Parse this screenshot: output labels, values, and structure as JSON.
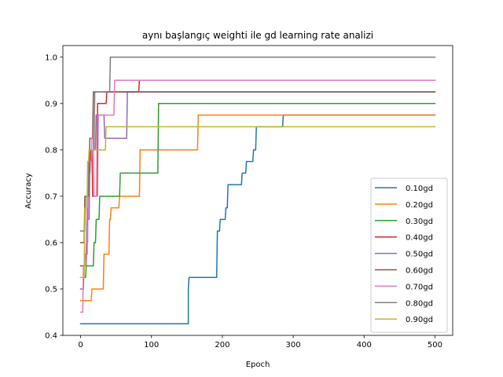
{
  "chart_data": {
    "type": "line",
    "title": "aynı başlangıç weighti ile gd learning rate analizi",
    "xlabel": "Epoch",
    "ylabel": "Accuracy",
    "xlim": [
      -25,
      525
    ],
    "ylim": [
      0.4,
      1.025
    ],
    "xticks": [
      0,
      100,
      200,
      300,
      400,
      500
    ],
    "yticks": [
      0.4,
      0.5,
      0.6,
      0.7,
      0.8,
      0.9,
      1.0
    ],
    "xtick_labels": [
      "0",
      "100",
      "200",
      "300",
      "400",
      "500"
    ],
    "ytick_labels": [
      "0.4",
      "0.5",
      "0.6",
      "0.7",
      "0.8",
      "0.9",
      "1.0"
    ],
    "grid": false,
    "legend_position": "lower right",
    "series": [
      {
        "name": "0.10gd",
        "color": "#1f77b4",
        "points": [
          [
            0,
            0.425
          ],
          [
            152,
            0.425
          ],
          [
            152,
            0.5
          ],
          [
            153,
            0.525
          ],
          [
            192,
            0.525
          ],
          [
            193,
            0.625
          ],
          [
            196,
            0.625
          ],
          [
            197,
            0.65
          ],
          [
            204,
            0.65
          ],
          [
            205,
            0.675
          ],
          [
            207,
            0.675
          ],
          [
            208,
            0.725
          ],
          [
            227,
            0.725
          ],
          [
            228,
            0.75
          ],
          [
            233,
            0.75
          ],
          [
            234,
            0.775
          ],
          [
            243,
            0.775
          ],
          [
            244,
            0.8
          ],
          [
            247,
            0.8
          ],
          [
            248,
            0.85
          ],
          [
            285,
            0.85
          ],
          [
            286,
            0.875
          ],
          [
            500,
            0.875
          ]
        ]
      },
      {
        "name": "0.20gd",
        "color": "#ff7f0e",
        "points": [
          [
            0,
            0.475
          ],
          [
            15,
            0.475
          ],
          [
            16,
            0.5
          ],
          [
            32,
            0.5
          ],
          [
            33,
            0.575
          ],
          [
            40,
            0.575
          ],
          [
            41,
            0.65
          ],
          [
            42,
            0.65
          ],
          [
            43,
            0.675
          ],
          [
            54,
            0.675
          ],
          [
            55,
            0.7
          ],
          [
            83,
            0.7
          ],
          [
            84,
            0.8
          ],
          [
            165,
            0.8
          ],
          [
            166,
            0.875
          ],
          [
            500,
            0.875
          ]
        ]
      },
      {
        "name": "0.30gd",
        "color": "#2ca02c",
        "points": [
          [
            0,
            0.525
          ],
          [
            7,
            0.525
          ],
          [
            8,
            0.55
          ],
          [
            18,
            0.55
          ],
          [
            19,
            0.6
          ],
          [
            21,
            0.6
          ],
          [
            22,
            0.65
          ],
          [
            26,
            0.65
          ],
          [
            27,
            0.7
          ],
          [
            55,
            0.7
          ],
          [
            56,
            0.75
          ],
          [
            109,
            0.75
          ],
          [
            110,
            0.9
          ],
          [
            500,
            0.9
          ]
        ]
      },
      {
        "name": "0.40gd",
        "color": "#d62728",
        "points": [
          [
            0,
            0.55
          ],
          [
            5,
            0.55
          ],
          [
            6,
            0.575
          ],
          [
            9,
            0.575
          ],
          [
            10,
            0.75
          ],
          [
            13,
            0.75
          ],
          [
            14,
            0.8
          ],
          [
            16,
            0.8
          ],
          [
            17,
            0.7
          ],
          [
            23,
            0.7
          ],
          [
            24,
            0.9
          ],
          [
            36,
            0.9
          ],
          [
            37,
            0.925
          ],
          [
            82,
            0.925
          ],
          [
            83,
            0.95
          ],
          [
            500,
            0.95
          ]
        ]
      },
      {
        "name": "0.50gd",
        "color": "#9467bd",
        "points": [
          [
            0,
            0.5
          ],
          [
            4,
            0.5
          ],
          [
            5,
            0.55
          ],
          [
            8,
            0.55
          ],
          [
            9,
            0.65
          ],
          [
            12,
            0.65
          ],
          [
            13,
            0.8
          ],
          [
            21,
            0.8
          ],
          [
            22,
            0.875
          ],
          [
            33,
            0.875
          ],
          [
            34,
            0.825
          ],
          [
            65,
            0.825
          ],
          [
            66,
            0.925
          ],
          [
            500,
            0.925
          ]
        ]
      },
      {
        "name": "0.60gd",
        "color": "#8c564b",
        "points": [
          [
            0,
            0.6
          ],
          [
            5,
            0.6
          ],
          [
            6,
            0.7
          ],
          [
            12,
            0.7
          ],
          [
            13,
            0.825
          ],
          [
            17,
            0.825
          ],
          [
            18,
            0.925
          ],
          [
            500,
            0.925
          ]
        ]
      },
      {
        "name": "0.70gd",
        "color": "#e377c2",
        "points": [
          [
            0,
            0.45
          ],
          [
            3,
            0.45
          ],
          [
            4,
            0.55
          ],
          [
            7,
            0.55
          ],
          [
            8,
            0.6
          ],
          [
            10,
            0.6
          ],
          [
            11,
            0.775
          ],
          [
            15,
            0.775
          ],
          [
            16,
            0.825
          ],
          [
            18,
            0.825
          ],
          [
            19,
            0.7
          ],
          [
            24,
            0.7
          ],
          [
            25,
            0.875
          ],
          [
            47,
            0.875
          ],
          [
            48,
            0.95
          ],
          [
            500,
            0.95
          ]
        ]
      },
      {
        "name": "0.80gd",
        "color": "#7f7f7f",
        "points": [
          [
            0,
            0.625
          ],
          [
            6,
            0.625
          ],
          [
            7,
            0.7
          ],
          [
            11,
            0.7
          ],
          [
            12,
            0.8
          ],
          [
            19,
            0.8
          ],
          [
            20,
            0.925
          ],
          [
            41,
            0.925
          ],
          [
            42,
            1.0
          ],
          [
            500,
            1.0
          ]
        ]
      },
      {
        "name": "0.90gd",
        "color": "#bcbd22",
        "points": [
          [
            0,
            0.525
          ],
          [
            5,
            0.525
          ],
          [
            6,
            0.675
          ],
          [
            9,
            0.675
          ],
          [
            10,
            0.775
          ],
          [
            11,
            0.775
          ],
          [
            12,
            0.8
          ],
          [
            35,
            0.8
          ],
          [
            36,
            0.85
          ],
          [
            500,
            0.85
          ]
        ]
      }
    ]
  }
}
